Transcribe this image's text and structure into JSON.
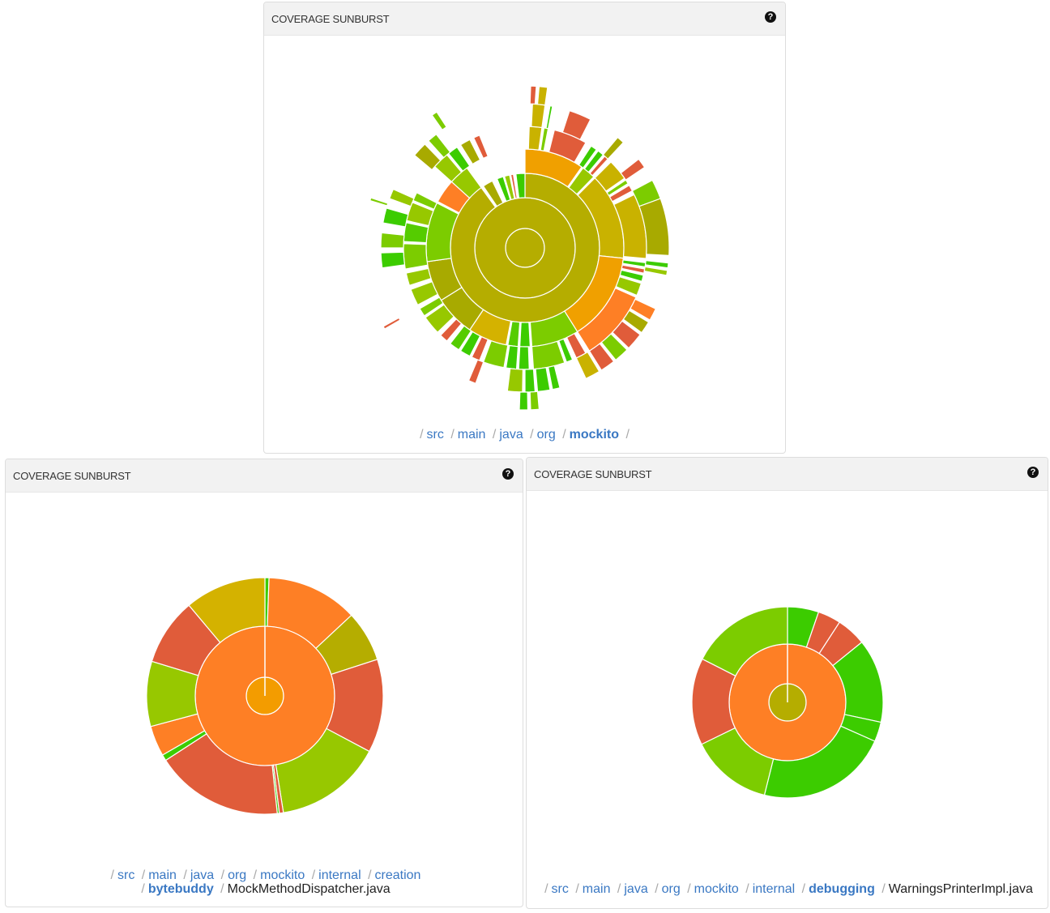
{
  "colors": {
    "olive": "#b5ad00",
    "olive2": "#a8aa00",
    "yellow": "#c9b200",
    "yellow2": "#d4b200",
    "orange": "#f0a000",
    "center_orange": "#f39c00",
    "dorange": "#fe7f25",
    "red": "#e05c3a",
    "green": "#3ccc00",
    "green2": "#55cc00",
    "lgreen": "#7ccc00",
    "ygreen": "#97c800",
    "link": "#3a78c3"
  },
  "panels": [
    {
      "title": "COVERAGE SUNBURST",
      "help_icon": "question-circle-icon",
      "breadcrumb": [
        {
          "label": "src",
          "type": "link"
        },
        {
          "label": "main",
          "type": "link"
        },
        {
          "label": "java",
          "type": "link"
        },
        {
          "label": "org",
          "type": "link"
        },
        {
          "label": "mockito",
          "type": "current"
        }
      ],
      "breadcrumb_trailing_sep": true
    },
    {
      "title": "COVERAGE SUNBURST",
      "help_icon": "question-circle-icon",
      "breadcrumb": [
        {
          "label": "src",
          "type": "link"
        },
        {
          "label": "main",
          "type": "link"
        },
        {
          "label": "java",
          "type": "link"
        },
        {
          "label": "org",
          "type": "link"
        },
        {
          "label": "mockito",
          "type": "link"
        },
        {
          "label": "internal",
          "type": "link"
        },
        {
          "label": "creation",
          "type": "link"
        },
        {
          "label": "bytebuddy",
          "type": "current"
        },
        {
          "label": "MockMethodDispatcher.java",
          "type": "file"
        }
      ]
    },
    {
      "title": "COVERAGE SUNBURST",
      "help_icon": "question-circle-icon",
      "breadcrumb": [
        {
          "label": "src",
          "type": "link"
        },
        {
          "label": "main",
          "type": "link"
        },
        {
          "label": "java",
          "type": "link"
        },
        {
          "label": "org",
          "type": "link"
        },
        {
          "label": "mockito",
          "type": "link"
        },
        {
          "label": "internal",
          "type": "link"
        },
        {
          "label": "debugging",
          "type": "current"
        },
        {
          "label": "WarningsPrinterImpl.java",
          "type": "file"
        }
      ]
    }
  ],
  "chart_data": [
    {
      "type": "sunburst",
      "title": "COVERAGE SUNBURST",
      "segment_format": "[ring, start_deg, end_deg, color_key]",
      "segments": [
        [
          0,
          0,
          360,
          "olive"
        ],
        [
          1,
          0,
          360,
          "olive"
        ],
        [
          2,
          0,
          324,
          "olive"
        ],
        [
          2,
          326,
          334,
          "olive2"
        ],
        [
          2,
          338,
          343,
          "green"
        ],
        [
          2,
          344,
          348,
          "ygreen"
        ],
        [
          2,
          349,
          351,
          "red"
        ],
        [
          2,
          353,
          360,
          "green"
        ],
        [
          3,
          0,
          35,
          "orange"
        ],
        [
          3,
          36,
          44,
          "ygreen"
        ],
        [
          3,
          45,
          96,
          "yellow"
        ],
        [
          3,
          96,
          148,
          "orange"
        ],
        [
          3,
          148,
          176,
          "lgreen"
        ],
        [
          3,
          177,
          183,
          "green"
        ],
        [
          3,
          184,
          190,
          "green2"
        ],
        [
          3,
          191,
          214,
          "yellow2"
        ],
        [
          3,
          214,
          238,
          "olive2"
        ],
        [
          3,
          238,
          262,
          "olive2"
        ],
        [
          3,
          262,
          297,
          "lgreen"
        ],
        [
          3,
          298,
          312,
          "dorange"
        ],
        [
          3,
          312,
          324,
          "ygreen"
        ],
        [
          4,
          2,
          8,
          "yellow"
        ],
        [
          4,
          9,
          11,
          "lgreen"
        ],
        [
          4,
          14,
          30,
          "red"
        ],
        [
          4,
          33,
          36,
          "green"
        ],
        [
          4,
          37,
          40,
          "green"
        ],
        [
          4,
          41,
          43,
          "red"
        ],
        [
          4,
          45,
          55,
          "yellow"
        ],
        [
          4,
          56,
          58,
          "lgreen"
        ],
        [
          4,
          59,
          62,
          "red"
        ],
        [
          4,
          64,
          95,
          "yellow"
        ],
        [
          4,
          97,
          99,
          "green"
        ],
        [
          4,
          100,
          102,
          "red"
        ],
        [
          4,
          103,
          106,
          "green"
        ],
        [
          4,
          107,
          113,
          "ygreen"
        ],
        [
          4,
          114,
          148,
          "dorange"
        ],
        [
          4,
          150,
          155,
          "red"
        ],
        [
          4,
          157,
          160,
          "green"
        ],
        [
          4,
          161,
          176,
          "lgreen"
        ],
        [
          4,
          178,
          183,
          "green"
        ],
        [
          4,
          184,
          189,
          "green"
        ],
        [
          4,
          190,
          200,
          "lgreen"
        ],
        [
          4,
          202,
          206,
          "red"
        ],
        [
          4,
          207,
          212,
          "green"
        ],
        [
          4,
          213,
          218,
          "green2"
        ],
        [
          4,
          220,
          224,
          "red"
        ],
        [
          4,
          226,
          235,
          "ygreen"
        ],
        [
          4,
          236,
          240,
          "lgreen"
        ],
        [
          4,
          242,
          250,
          "ygreen"
        ],
        [
          4,
          252,
          258,
          "ygreen"
        ],
        [
          4,
          260,
          272,
          "lgreen"
        ],
        [
          4,
          273,
          282,
          "green2"
        ],
        [
          4,
          283,
          292,
          "ygreen"
        ],
        [
          4,
          293,
          297,
          "lgreen"
        ],
        [
          4,
          312,
          320,
          "ygreen"
        ],
        [
          4,
          321,
          326,
          "green"
        ],
        [
          4,
          328,
          333,
          "olive2"
        ],
        [
          4,
          335,
          338,
          "red"
        ],
        [
          5,
          3,
          8,
          "yellow"
        ],
        [
          5,
          10,
          11,
          "green"
        ],
        [
          5,
          18,
          27,
          "red"
        ],
        [
          5,
          40,
          43,
          "olive2"
        ],
        [
          5,
          52,
          56,
          "red"
        ],
        [
          5,
          62,
          70,
          "lgreen"
        ],
        [
          5,
          70,
          93,
          "olive2"
        ],
        [
          5,
          96,
          98,
          "green"
        ],
        [
          5,
          99,
          101,
          "ygreen"
        ],
        [
          5,
          115,
          120,
          "dorange"
        ],
        [
          5,
          121,
          126,
          "olive2"
        ],
        [
          5,
          127,
          134,
          "red"
        ],
        [
          5,
          135,
          141,
          "lgreen"
        ],
        [
          5,
          142,
          148,
          "red"
        ],
        [
          5,
          149,
          155,
          "yellow"
        ],
        [
          5,
          166,
          169,
          "green"
        ],
        [
          5,
          170,
          175,
          "green"
        ],
        [
          5,
          176,
          180,
          "green"
        ],
        [
          5,
          181,
          187,
          "ygreen"
        ],
        [
          5,
          200,
          203,
          "red"
        ],
        [
          5,
          262,
          268,
          "green"
        ],
        [
          5,
          270,
          276,
          "lgreen"
        ],
        [
          5,
          280,
          286,
          "green"
        ],
        [
          5,
          290,
          294,
          "ygreen"
        ],
        [
          5,
          310,
          316,
          "olive2"
        ],
        [
          5,
          318,
          322,
          "lgreen"
        ],
        [
          6,
          2,
          4,
          "red"
        ],
        [
          6,
          5,
          8,
          "yellow"
        ],
        [
          6,
          175,
          178,
          "lgreen"
        ],
        [
          6,
          179,
          182,
          "green"
        ],
        [
          6,
          240,
          241,
          "red"
        ],
        [
          6,
          287,
          288,
          "lgreen"
        ],
        [
          6,
          325,
          327,
          "lgreen"
        ]
      ]
    },
    {
      "type": "sunburst",
      "title": "COVERAGE SUNBURST",
      "segment_format": "[ring, start_deg, end_deg, color_key]",
      "segments": [
        [
          0,
          0,
          360,
          "center_orange"
        ],
        [
          1,
          0,
          360,
          "dorange"
        ],
        [
          2,
          0,
          2,
          "green"
        ],
        [
          2,
          2,
          47,
          "dorange"
        ],
        [
          2,
          47,
          72,
          "olive"
        ],
        [
          2,
          72,
          118,
          "red"
        ],
        [
          2,
          118,
          171,
          "ygreen"
        ],
        [
          2,
          171,
          173,
          "red"
        ],
        [
          2,
          173,
          174,
          "green"
        ],
        [
          2,
          174,
          237,
          "red"
        ],
        [
          2,
          237,
          240,
          "green"
        ],
        [
          2,
          240,
          255,
          "dorange"
        ],
        [
          2,
          255,
          287,
          "ygreen"
        ],
        [
          2,
          287,
          320,
          "red"
        ],
        [
          2,
          320,
          360,
          "yellow2"
        ]
      ]
    },
    {
      "type": "sunburst",
      "title": "COVERAGE SUNBURST",
      "segment_format": "[ring, start_deg, end_deg, color_key]",
      "segments": [
        [
          0,
          0,
          360,
          "olive"
        ],
        [
          1,
          0,
          360,
          "dorange"
        ],
        [
          2,
          0,
          19,
          "green"
        ],
        [
          2,
          19,
          33,
          "red"
        ],
        [
          2,
          33,
          51,
          "red"
        ],
        [
          2,
          51,
          102,
          "green"
        ],
        [
          2,
          102,
          114,
          "green"
        ],
        [
          2,
          114,
          194,
          "green"
        ],
        [
          2,
          194,
          244,
          "lgreen"
        ],
        [
          2,
          244,
          297,
          "red"
        ],
        [
          2,
          297,
          360,
          "lgreen"
        ]
      ]
    }
  ]
}
